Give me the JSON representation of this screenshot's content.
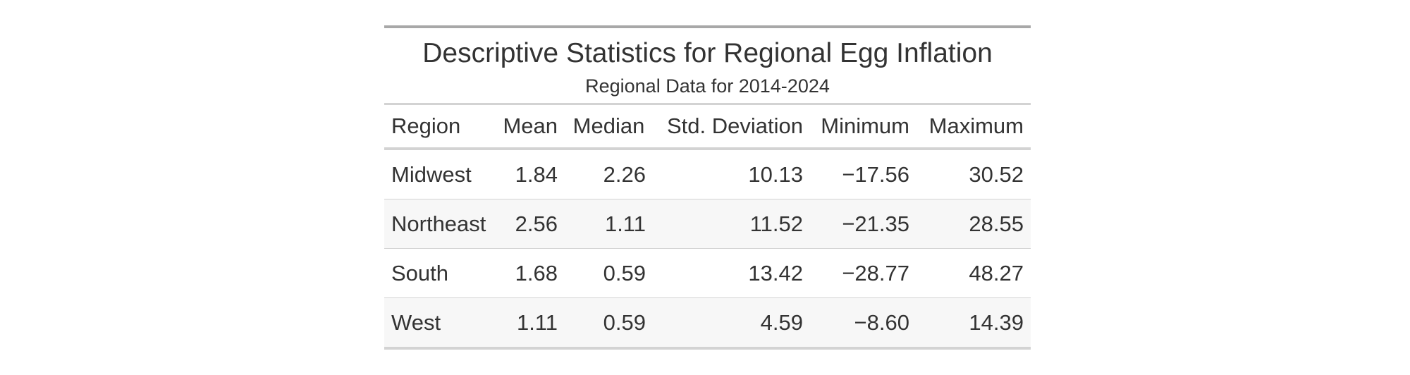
{
  "chart_data": {
    "type": "table",
    "title": "Descriptive Statistics for Regional Egg Inflation",
    "subtitle": "Regional Data for 2014-2024",
    "columns": [
      "Region",
      "Mean",
      "Median",
      "Std. Deviation",
      "Minimum",
      "Maximum"
    ],
    "rows": [
      [
        "Midwest",
        "1.84",
        "2.26",
        "10.13",
        "−17.56",
        "30.52"
      ],
      [
        "Northeast",
        "2.56",
        "1.11",
        "11.52",
        "−21.35",
        "28.55"
      ],
      [
        "South",
        "1.68",
        "0.59",
        "13.42",
        "−28.77",
        "48.27"
      ],
      [
        "West",
        "1.11",
        "0.59",
        "4.59",
        "−8.60",
        "14.39"
      ]
    ],
    "striping": "alternate rows light gray"
  }
}
